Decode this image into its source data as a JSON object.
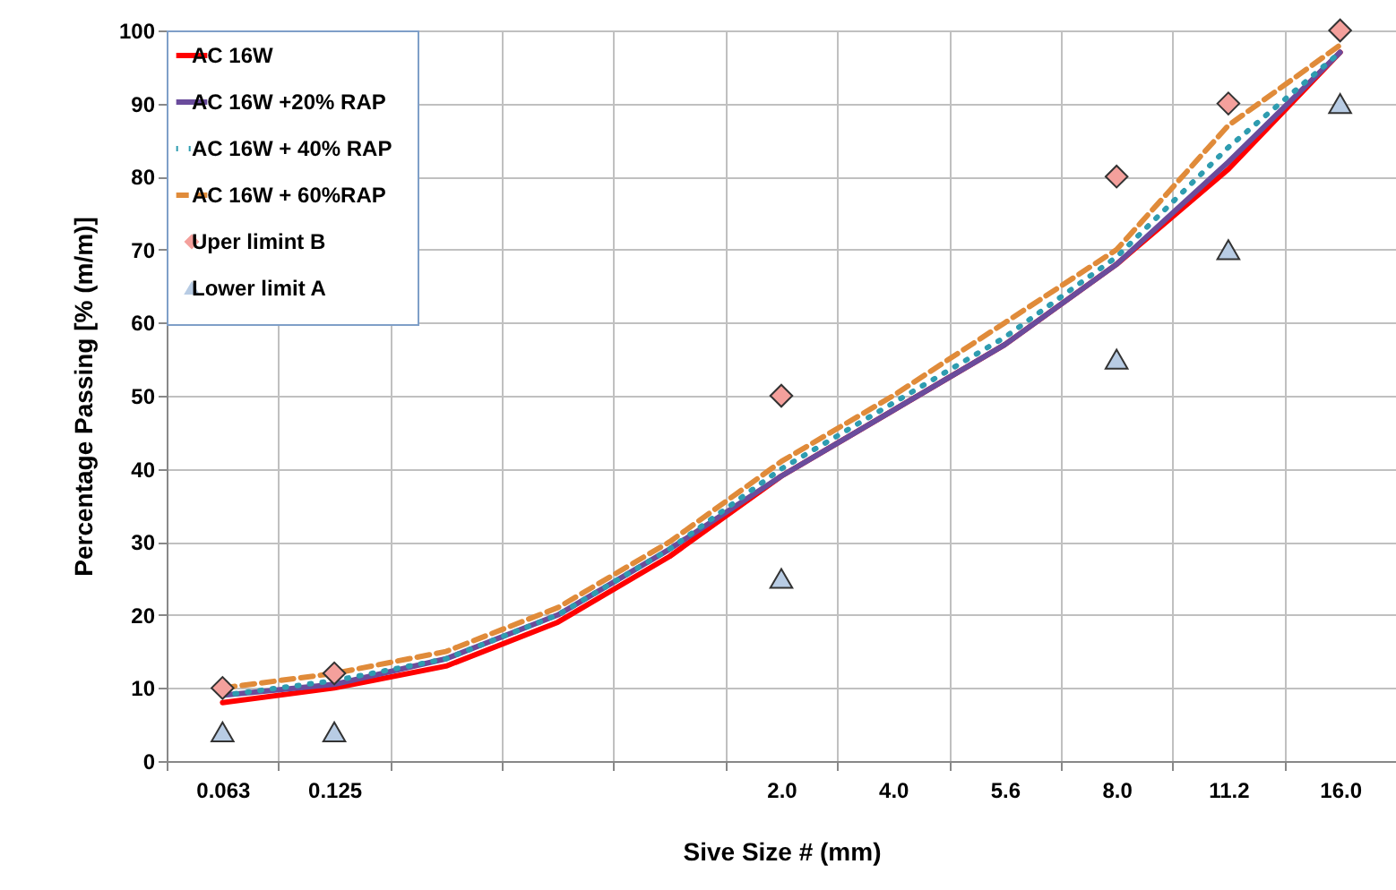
{
  "chart_data": {
    "type": "line",
    "xlabel": "Sive Size #  (mm)",
    "ylabel": "Percentage Passing [% (m/m)]",
    "categories": [
      "0.063",
      "0.125",
      null,
      null,
      null,
      "2.0",
      "4.0",
      "5.6",
      "8.0",
      "11.2",
      "16.0"
    ],
    "ylim": [
      0,
      100
    ],
    "yticks": [
      0,
      10,
      20,
      30,
      40,
      50,
      60,
      70,
      80,
      90,
      100
    ],
    "grid": true,
    "legend": "top left",
    "series": [
      {
        "name": "AC 16W",
        "type": "line",
        "line_style": "solid",
        "color": "#ff0000",
        "values": [
          8,
          10,
          13,
          19,
          28,
          39,
          48,
          57,
          68,
          81,
          97
        ]
      },
      {
        "name": "AC 16W +20% RAP",
        "type": "line",
        "line_style": "solid",
        "color": "#6a4c9c",
        "values": [
          9,
          10.5,
          14,
          20,
          29,
          39,
          48,
          57,
          68,
          82,
          97
        ]
      },
      {
        "name": "AC 16W + 40% RAP",
        "type": "line",
        "line_style": "dotted",
        "color": "#2e9cb0",
        "values": [
          9,
          11,
          14,
          20,
          29,
          40,
          49,
          58,
          69,
          84,
          97
        ]
      },
      {
        "name": "AC 16W + 60%RAP",
        "type": "line",
        "line_style": "dashed",
        "color": "#e08b3a",
        "values": [
          10,
          12,
          15,
          21,
          30,
          41,
          50,
          60,
          70,
          87,
          98
        ]
      },
      {
        "name": "Uper limint B",
        "type": "scatter",
        "marker": "diamond",
        "color": "#f4a09c",
        "values": [
          10,
          12,
          null,
          null,
          null,
          50,
          null,
          null,
          80,
          90,
          100
        ]
      },
      {
        "name": "Lower limit A",
        "type": "scatter",
        "marker": "triangle",
        "color": "#b8cce4",
        "values": [
          4,
          4,
          null,
          null,
          null,
          25,
          null,
          null,
          55,
          70,
          90
        ]
      }
    ]
  }
}
